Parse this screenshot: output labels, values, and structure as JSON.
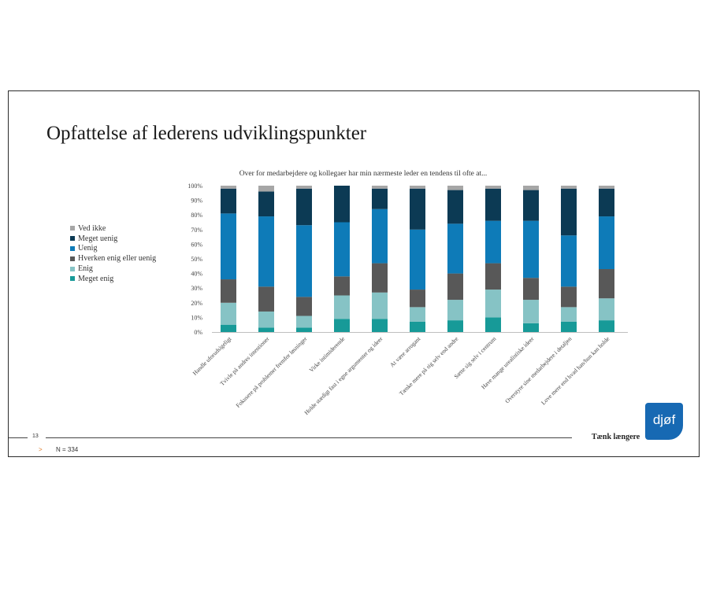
{
  "title": "Opfattelse af lederens udviklingspunkter",
  "page_number": "13",
  "footer_arrow": ">",
  "footer_note": "N = 334",
  "tagline": "Tænk længere",
  "logo": {
    "text": "djøf",
    "color": "#1769b3"
  },
  "chart_data": {
    "type": "bar",
    "stacked": true,
    "title": "Over for medarbejdere og kollegaer har min nærmeste leder en tendens til ofte at...",
    "categories": [
      "Handle uforudsigeligt",
      "Tvivle på andres intentioner",
      "Fokusere på problemer fremfor løsninger",
      "Virke intimiderende",
      "Holde stædigt fast i egne argumenter og ideer",
      "At være arrogant",
      "Tænke mere på sig selv end andre",
      "Sætte sig selv i centrum",
      "Have mange urealistiske ideer",
      "Overstyre sine medarbejdere i detaljen",
      "Love mere end hvad han/hun kan holde"
    ],
    "series": [
      {
        "name": "Meget enig",
        "color": "#179a98",
        "values": [
          5,
          3,
          3,
          9,
          9,
          7,
          8,
          10,
          6,
          7,
          8
        ]
      },
      {
        "name": "Enig",
        "color": "#86c3c5",
        "values": [
          15,
          11,
          8,
          16,
          18,
          10,
          14,
          19,
          16,
          10,
          15
        ]
      },
      {
        "name": "Hverken enig eller uenig",
        "color": "#585858",
        "values": [
          16,
          17,
          13,
          13,
          20,
          12,
          18,
          18,
          15,
          14,
          20
        ]
      },
      {
        "name": "Uenig",
        "color": "#0e7bb8",
        "values": [
          45,
          48,
          49,
          37,
          37,
          41,
          34,
          29,
          39,
          35,
          36
        ]
      },
      {
        "name": "Meget uenig",
        "color": "#0c3a54",
        "values": [
          17,
          17,
          25,
          25,
          14,
          28,
          23,
          22,
          21,
          32,
          19
        ]
      },
      {
        "name": "Ved ikke",
        "color": "#a6a6a6",
        "values": [
          2,
          4,
          2,
          0,
          2,
          2,
          3,
          2,
          3,
          2,
          2
        ]
      }
    ],
    "legend_order": [
      "Ved ikke",
      "Meget uenig",
      "Uenig",
      "Hverken enig eller uenig",
      "Enig",
      "Meget enig"
    ],
    "y_ticks": [
      "0%",
      "10%",
      "20%",
      "30%",
      "40%",
      "50%",
      "60%",
      "70%",
      "80%",
      "90%",
      "100%"
    ],
    "ylim": [
      0,
      100
    ],
    "legend_position": "left",
    "grid": false
  }
}
